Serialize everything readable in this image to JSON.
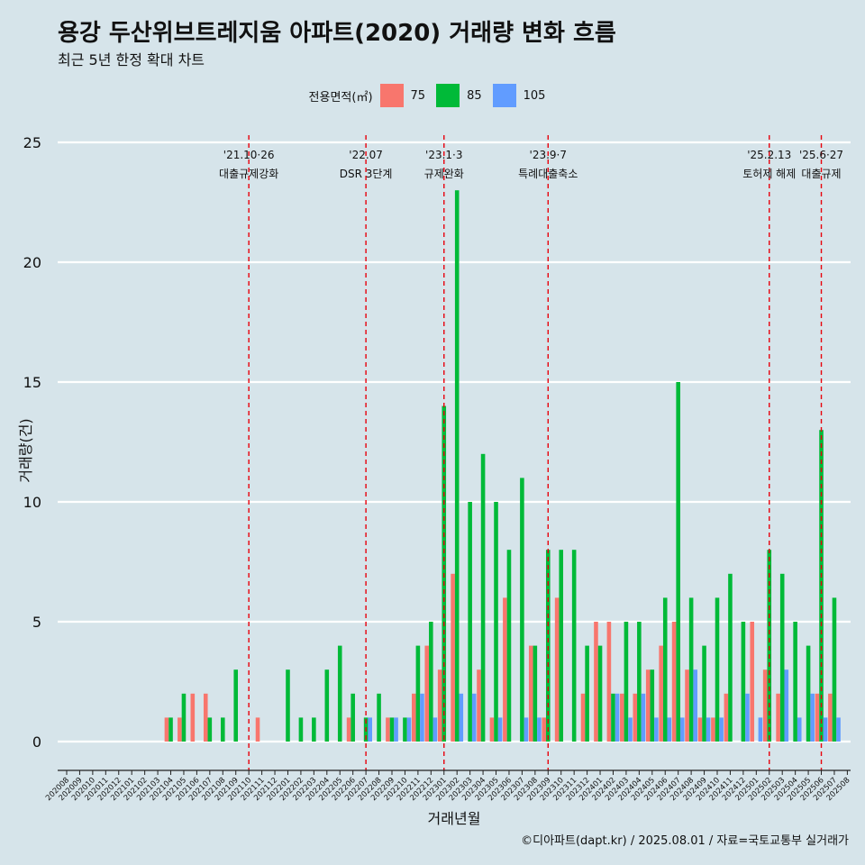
{
  "title": "용강 두산위브트레지움 아파트(2020) 거래량 변화 흐름",
  "subtitle": "최근 5년 한정 확대 차트",
  "caption": "©디아파트(dapt.kr) / 2025.08.01 / 자료=국토교통부 실거래가",
  "chart_data": {
    "type": "bar",
    "xlabel": "거래년월",
    "ylabel": "거래량(건)",
    "ylim": [
      -1.2,
      25
    ],
    "yticks": [
      0,
      5,
      10,
      15,
      20,
      25
    ],
    "grid": true,
    "legend": {
      "title": "전용면적(㎡)",
      "position": "top"
    },
    "categories": [
      "202008",
      "202009",
      "202010",
      "202011",
      "202012",
      "202101",
      "202102",
      "202103",
      "202104",
      "202105",
      "202106",
      "202107",
      "202108",
      "202109",
      "202110",
      "202111",
      "202112",
      "202201",
      "202202",
      "202203",
      "202204",
      "202205",
      "202206",
      "202207",
      "202208",
      "202209",
      "202210",
      "202211",
      "202212",
      "202301",
      "202302",
      "202303",
      "202304",
      "202305",
      "202306",
      "202307",
      "202308",
      "202309",
      "202310",
      "202311",
      "202312",
      "202401",
      "202402",
      "202403",
      "202404",
      "202405",
      "202406",
      "202407",
      "202408",
      "202409",
      "202410",
      "202411",
      "202412",
      "202501",
      "202502",
      "202503",
      "202504",
      "202505",
      "202506",
      "202507",
      "202508"
    ],
    "series": [
      {
        "name": "75",
        "color": "#f8766d",
        "values": [
          0,
          0,
          0,
          0,
          0,
          0,
          0,
          0,
          1,
          1,
          2,
          2,
          0,
          0,
          0,
          1,
          0,
          0,
          0,
          0,
          0,
          0,
          1,
          0,
          0,
          1,
          0,
          2,
          4,
          3,
          7,
          0,
          3,
          1,
          6,
          0,
          4,
          1,
          6,
          0,
          2,
          5,
          5,
          2,
          2,
          3,
          4,
          5,
          3,
          1,
          1,
          2,
          0,
          5,
          3,
          2,
          0,
          0,
          2,
          2,
          0
        ]
      },
      {
        "name": "85",
        "color": "#00ba38",
        "values": [
          0,
          0,
          0,
          0,
          0,
          0,
          0,
          0,
          1,
          2,
          0,
          1,
          1,
          3,
          0,
          0,
          0,
          3,
          1,
          1,
          3,
          4,
          2,
          1,
          2,
          1,
          1,
          4,
          5,
          14,
          23,
          10,
          12,
          10,
          8,
          11,
          4,
          8,
          8,
          8,
          4,
          4,
          2,
          5,
          5,
          3,
          6,
          15,
          6,
          4,
          6,
          7,
          5,
          0,
          8,
          7,
          5,
          4,
          13,
          6,
          0
        ]
      },
      {
        "name": "105",
        "color": "#619cff",
        "values": [
          0,
          0,
          0,
          0,
          0,
          0,
          0,
          0,
          0,
          0,
          0,
          0,
          0,
          0,
          0,
          0,
          0,
          0,
          0,
          0,
          0,
          0,
          0,
          1,
          0,
          1,
          1,
          2,
          1,
          0,
          2,
          2,
          0,
          1,
          0,
          1,
          1,
          0,
          0,
          0,
          0,
          0,
          2,
          1,
          2,
          1,
          1,
          1,
          3,
          1,
          1,
          0,
          2,
          1,
          0,
          3,
          1,
          2,
          1,
          1,
          0
        ]
      }
    ],
    "annotations": [
      {
        "x": "202110",
        "date": "'21.10·26",
        "label": "대출규제강화"
      },
      {
        "x": "202207",
        "date": "'22.07",
        "label": "DSR 3단계"
      },
      {
        "x": "202301",
        "date": "'23.1·3",
        "label": "규제완화"
      },
      {
        "x": "202309",
        "date": "'23.9·7",
        "label": "특례대출축소"
      },
      {
        "x": "202502",
        "date": "'25.2.13",
        "label": "토허제 해제"
      },
      {
        "x": "202506",
        "date": "'25.6·27",
        "label": "대출규제"
      }
    ]
  }
}
